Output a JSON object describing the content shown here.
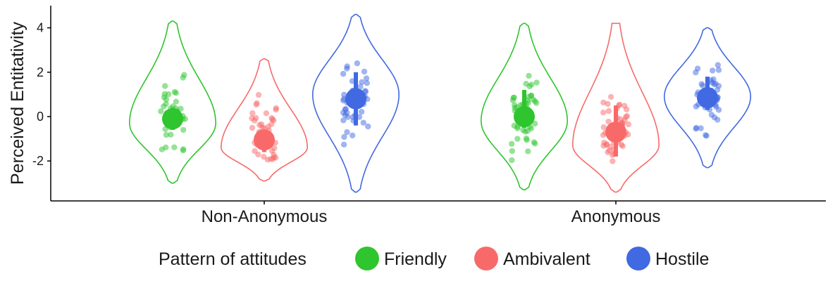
{
  "chart_data": {
    "type": "violin",
    "title": "",
    "xlabel": "",
    "ylabel": "Perceived Entitativity",
    "ylim": [
      -3.8,
      5.0
    ],
    "yticks": [
      -2,
      0,
      2,
      4
    ],
    "ytick_labels": [
      "-2",
      "0",
      "2",
      "4"
    ],
    "grid": false,
    "categories": [
      "Non-Anonymous",
      "Anonymous"
    ],
    "legend": {
      "title": "Pattern of attitudes",
      "placement": "bottom"
    },
    "series": [
      {
        "name": "Friendly",
        "color": "#2ec52e",
        "mean": [
          -0.1,
          0.0
        ],
        "ci_low": [
          -0.6,
          -0.5
        ],
        "ci_high": [
          0.4,
          1.2
        ],
        "ymin": [
          -3.0,
          -3.3
        ],
        "ymax": [
          4.3,
          4.2
        ],
        "mode": [
          -0.3,
          -0.2
        ]
      },
      {
        "name": "Ambivalent",
        "color": "#f86a6a",
        "mean": [
          -1.05,
          -0.7
        ],
        "ci_low": [
          -1.6,
          -1.8
        ],
        "ci_high": [
          -0.6,
          0.5
        ],
        "ymin": [
          -2.9,
          -3.4
        ],
        "ymax": [
          2.6,
          4.2
        ],
        "mode": [
          -1.4,
          -1.3
        ]
      },
      {
        "name": "Hostile",
        "color": "#4169e1",
        "mean": [
          0.8,
          0.85
        ],
        "ci_low": [
          -0.4,
          0.3
        ],
        "ci_high": [
          2.0,
          1.8
        ],
        "ymin": [
          -3.4,
          -2.3
        ],
        "ymax": [
          4.6,
          4.0
        ],
        "mode": [
          1.0,
          0.9
        ]
      }
    ]
  }
}
